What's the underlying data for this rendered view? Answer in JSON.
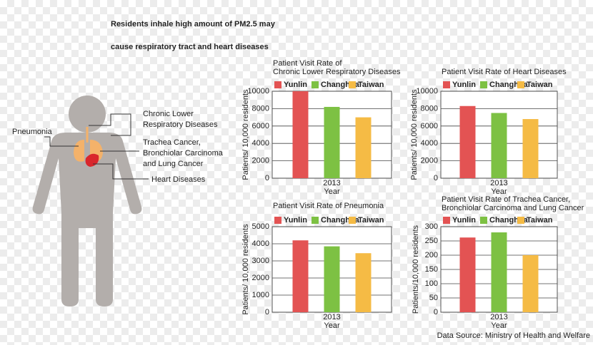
{
  "title": [
    "Residents inhale high amount of PM2.5 may",
    "cause respiratory tract and heart diseases"
  ],
  "labels": {
    "pneumonia": "Pneumonia",
    "chronic": [
      "Chronic Lower",
      "Respiratory Diseases"
    ],
    "cancer": [
      "Trachea Cancer,",
      "Bronchiolar Carcinoma",
      "and Lung Cancer"
    ],
    "heart": "Heart Diseases"
  },
  "source": "Data Source: Ministry of Health and Welfare",
  "chart_data": [
    {
      "type": "bar",
      "title": [
        "Patient Visit Rate of",
        "Chronic Lower Respiratory Diseases"
      ],
      "categories": [
        "2013"
      ],
      "xlabel": "Year",
      "ylabel": "Patients/ 10,000 residents",
      "series": [
        {
          "name": "Yunlin",
          "color": "#e35353",
          "values": [
            10000
          ]
        },
        {
          "name": "Changhua",
          "color": "#7dc143",
          "values": [
            8200
          ]
        },
        {
          "name": "Taiwan",
          "color": "#f5bb45",
          "values": [
            7000
          ]
        }
      ],
      "ylim": [
        0,
        10000
      ],
      "yticks": [
        0,
        2000,
        4000,
        6000,
        8000,
        10000
      ],
      "grid": true
    },
    {
      "type": "bar",
      "title": [
        "Patient Visit Rate of Heart Diseases"
      ],
      "categories": [
        "2013"
      ],
      "xlabel": "Year",
      "ylabel": "Patients/ 10,000 residents",
      "series": [
        {
          "name": "Yunlin",
          "color": "#e35353",
          "values": [
            8300
          ]
        },
        {
          "name": "Changhua",
          "color": "#7dc143",
          "values": [
            7500
          ]
        },
        {
          "name": "Taiwan",
          "color": "#f5bb45",
          "values": [
            6800
          ]
        }
      ],
      "ylim": [
        0,
        10000
      ],
      "yticks": [
        0,
        2000,
        4000,
        6000,
        8000,
        10000
      ],
      "grid": true
    },
    {
      "type": "bar",
      "title": [
        "Patient Visit Rate of Pneumonia"
      ],
      "categories": [
        "2013"
      ],
      "xlabel": "Year",
      "ylabel": "Patients/ 10,000 residents",
      "series": [
        {
          "name": "Yunlin",
          "color": "#e35353",
          "values": [
            4200
          ]
        },
        {
          "name": "Changhua",
          "color": "#7dc143",
          "values": [
            3850
          ]
        },
        {
          "name": "Taiwan",
          "color": "#f5bb45",
          "values": [
            3450
          ]
        }
      ],
      "ylim": [
        0,
        5000
      ],
      "yticks": [
        0,
        1000,
        2000,
        3000,
        4000,
        5000
      ],
      "grid": true
    },
    {
      "type": "bar",
      "title": [
        "Patient Visit Rate of Trachea Cancer,",
        "Bronchiolar Carcinoma and Lung Cancer"
      ],
      "categories": [
        "2013"
      ],
      "xlabel": "Year",
      "ylabel": "Patients/10,000 residents",
      "series": [
        {
          "name": "Yunlin",
          "color": "#e35353",
          "values": [
            262
          ]
        },
        {
          "name": "Changhua",
          "color": "#7dc143",
          "values": [
            280
          ]
        },
        {
          "name": "Taiwan",
          "color": "#f5bb45",
          "values": [
            200
          ]
        }
      ],
      "ylim": [
        0,
        300
      ],
      "yticks": [
        0,
        50,
        100,
        150,
        200,
        250,
        300
      ],
      "grid": true
    }
  ]
}
